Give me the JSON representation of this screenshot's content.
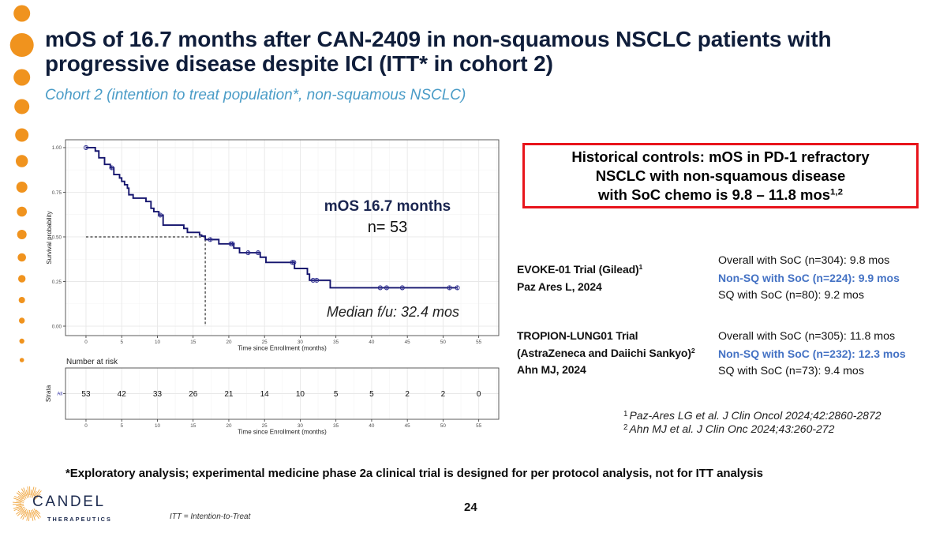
{
  "slide": {
    "title_lines": [
      "mOS of 16.7 months after CAN-2409 in non-squamous NSCLC patients with",
      "progressive disease despite ICI (ITT* in cohort 2)"
    ],
    "subtitle": "Cohort 2 (intention to treat population*, non-squamous NSCLC)",
    "bottom_note": "*Exploratory analysis; experimental medicine phase 2a clinical trial is designed for per protocol analysis, not for ITT analysis",
    "page_number": "24",
    "itt_definition": "ITT = Intention-to-Treat",
    "colors": {
      "title": "#0f1d3a",
      "subtitle": "#4a9cc7",
      "accent_orange": "#f0931e",
      "highlight_blue": "#4472c4",
      "box_border": "#e8141b",
      "curve": "#15156e",
      "censor": "#2d2d8f"
    }
  },
  "logo": {
    "name": "CANDEL",
    "tagline": "THERAPEUTICS",
    "icon": "sunburst-icon"
  },
  "historical_box": {
    "lines": [
      "Historical controls: mOS in PD-1 refractory",
      "NSCLC with non-squamous disease",
      "with SoC chemo is 9.8 – 11.8 mos"
    ],
    "superscript": "1,2"
  },
  "trials": [
    {
      "label_lines": [
        {
          "text": "EVOKE-01 Trial (Gilead)",
          "sup": "1"
        },
        {
          "text": "Paz Ares L, 2024",
          "sup": ""
        }
      ],
      "results": [
        {
          "text": "Overall with SoC (n=304): 9.8 mos",
          "highlight": false
        },
        {
          "text": "Non-SQ with SoC (n=224): 9.9 mos",
          "highlight": true
        },
        {
          "text": "SQ with SoC (n=80): 9.2 mos",
          "highlight": false
        }
      ]
    },
    {
      "label_lines": [
        {
          "text": "TROPION-LUNG01 Trial",
          "sup": ""
        },
        {
          "text": "(AstraZeneca and Daiichi Sankyo)",
          "sup": "2"
        },
        {
          "text": "Ahn MJ, 2024",
          "sup": ""
        }
      ],
      "results": [
        {
          "text": "Overall with SoC (n=305): 11.8 mos",
          "highlight": false
        },
        {
          "text": "Non-SQ with SoC (n=232): 12.3 mos",
          "highlight": true
        },
        {
          "text": "SQ with SoC (n=73): 9.4 mos",
          "highlight": false
        }
      ]
    }
  ],
  "references": [
    {
      "num": "1",
      "text": "Paz-Ares LG et al. J Clin Oncol 2024;42:2860-2872"
    },
    {
      "num": "2",
      "text": "Ahn MJ et al.  J Clin Onc 2024;43:260-272"
    }
  ],
  "chart_data": {
    "type": "line",
    "subtype": "kaplan-meier-step",
    "title": "",
    "xlabel": "Time since Enrollment (months)",
    "ylabel": "Survival probability",
    "xlim": [
      -2.87,
      57.8
    ],
    "ylim": [
      -0.053,
      1.044
    ],
    "xticks": [
      0,
      5,
      10,
      15,
      20,
      25,
      30,
      35,
      40,
      45,
      50,
      55
    ],
    "yticks": [
      0,
      0.25,
      0.5,
      0.75,
      1.0
    ],
    "ytick_labels": [
      "0.00",
      "0.25",
      "0.50",
      "0.75",
      "1.00"
    ],
    "grid": true,
    "legend": "none",
    "series": [
      {
        "name": "All",
        "steps": [
          [
            0,
            1.0
          ],
          [
            1.3,
            0.981
          ],
          [
            1.8,
            0.943
          ],
          [
            2.6,
            0.906
          ],
          [
            3.4,
            0.887
          ],
          [
            3.9,
            0.849
          ],
          [
            4.7,
            0.83
          ],
          [
            5.0,
            0.811
          ],
          [
            5.4,
            0.792
          ],
          [
            5.8,
            0.773
          ],
          [
            6.0,
            0.736
          ],
          [
            6.6,
            0.717
          ],
          [
            8.4,
            0.698
          ],
          [
            9.1,
            0.66
          ],
          [
            9.5,
            0.641
          ],
          [
            10.2,
            0.622
          ],
          [
            10.8,
            0.566
          ],
          [
            13.7,
            0.547
          ],
          [
            14.2,
            0.525
          ],
          [
            15.9,
            0.51
          ],
          [
            16.2,
            0.504
          ],
          [
            16.7,
            0.485
          ],
          [
            18.6,
            0.461
          ],
          [
            20.7,
            0.437
          ],
          [
            21.5,
            0.411
          ],
          [
            24.4,
            0.386
          ],
          [
            25.2,
            0.357
          ],
          [
            29.2,
            0.323
          ],
          [
            31.0,
            0.291
          ],
          [
            31.3,
            0.257
          ],
          [
            34.2,
            0.215
          ]
        ],
        "end_time": 52.0,
        "censored_times": [
          0,
          3.6,
          10.4,
          17.4,
          20.3,
          20.5,
          22.7,
          24.1,
          28.9,
          29.1,
          31.8,
          32.3,
          41.2,
          42.1,
          44.3,
          50.9,
          52.0
        ]
      }
    ],
    "median": {
      "time": 16.7,
      "survival": 0.5
    },
    "annotations": {
      "mos": "mOS 16.7 months",
      "n": "n= 53",
      "followup": "Median f/u: 32.4 mos"
    },
    "risk_table": {
      "title": "Number at risk",
      "ylabel": "Strata",
      "strata_label": "All",
      "xlabel": "Time since Enrollment (months)",
      "times": [
        0,
        5,
        10,
        15,
        20,
        25,
        30,
        35,
        40,
        45,
        50,
        55
      ],
      "counts": [
        53,
        42,
        33,
        26,
        21,
        14,
        10,
        5,
        5,
        2,
        2,
        0
      ]
    }
  }
}
